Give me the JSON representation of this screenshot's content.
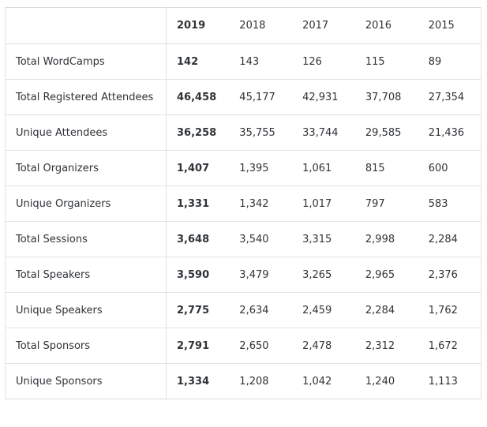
{
  "table": {
    "corner": "",
    "years": [
      "2019",
      "2018",
      "2017",
      "2016",
      "2015"
    ],
    "rows": [
      {
        "label": "Total WordCamps",
        "values": [
          "142",
          "143",
          "126",
          "115",
          "89"
        ]
      },
      {
        "label": "Total Registered Attendees",
        "values": [
          "46,458",
          "45,177",
          "42,931",
          "37,708",
          "27,354"
        ]
      },
      {
        "label": "Unique Attendees",
        "values": [
          "36,258",
          "35,755",
          "33,744",
          "29,585",
          "21,436"
        ]
      },
      {
        "label": "Total Organizers",
        "values": [
          "1,407",
          "1,395",
          "1,061",
          "815",
          "600"
        ]
      },
      {
        "label": "Unique Organizers",
        "values": [
          "1,331",
          "1,342",
          "1,017",
          "797",
          "583"
        ]
      },
      {
        "label": "Total Sessions",
        "values": [
          "3,648",
          "3,540",
          "3,315",
          "2,998",
          "2,284"
        ]
      },
      {
        "label": "Total Speakers",
        "values": [
          "3,590",
          "3,479",
          "3,265",
          "2,965",
          "2,376"
        ]
      },
      {
        "label": "Unique Speakers",
        "values": [
          "2,775",
          "2,634",
          "2,459",
          "2,284",
          "1,762"
        ]
      },
      {
        "label": "Total Sponsors",
        "values": [
          "2,791",
          "2,650",
          "2,478",
          "2,312",
          "1,672"
        ]
      },
      {
        "label": "Unique Sponsors",
        "values": [
          "1,334",
          "1,208",
          "1,042",
          "1,240",
          "1,113"
        ]
      }
    ]
  }
}
